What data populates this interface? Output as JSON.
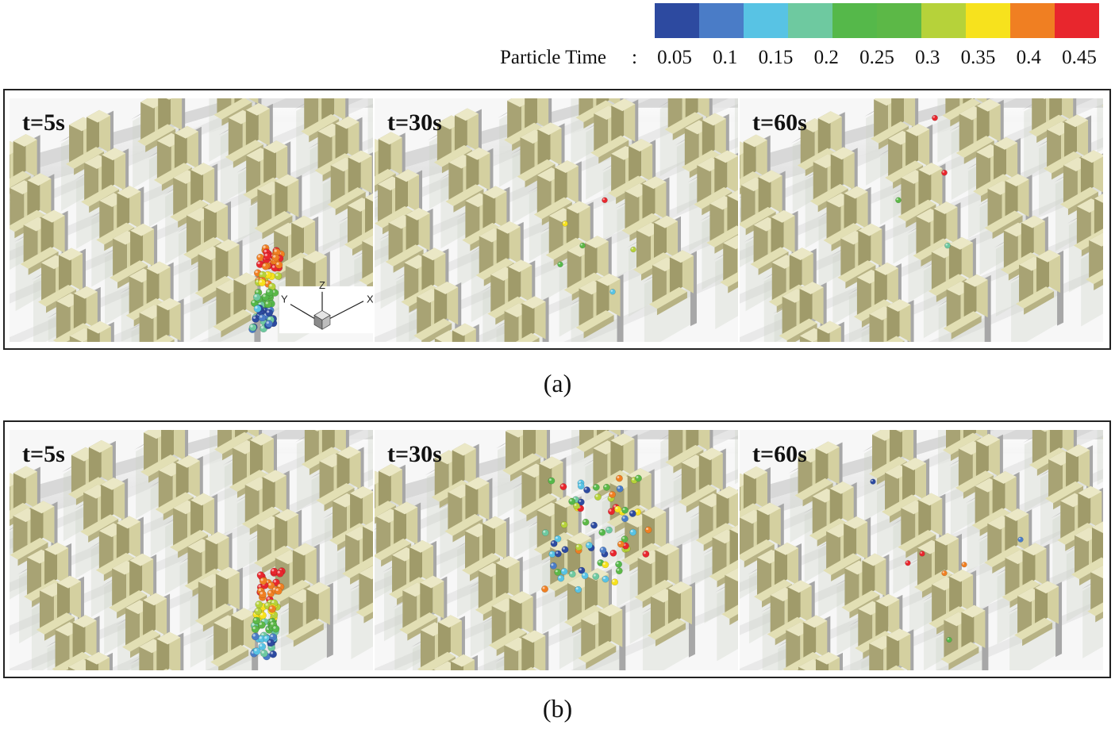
{
  "legend": {
    "title": "Particle Time",
    "separator": ":",
    "ticks": [
      "0.05",
      "0.1",
      "0.15",
      "0.2",
      "0.25",
      "0.3",
      "0.35",
      "0.4",
      "0.45"
    ],
    "colors": [
      "#2d4aa0",
      "#4a7cc7",
      "#58c3e4",
      "#6ec9a0",
      "#55b84a",
      "#5cb847",
      "#b6d23a",
      "#f7e21d",
      "#f07f22",
      "#e8262d"
    ]
  },
  "rows": [
    {
      "caption": "(a)",
      "panels": [
        {
          "time": "t=5s",
          "axes": {
            "x": "X",
            "y": "Y",
            "z": "Z"
          }
        },
        {
          "time": "t=30s"
        },
        {
          "time": "t=60s"
        }
      ]
    },
    {
      "caption": "(b)",
      "panels": [
        {
          "time": "t=5s"
        },
        {
          "time": "t=30s"
        },
        {
          "time": "t=60s"
        }
      ]
    }
  ]
}
